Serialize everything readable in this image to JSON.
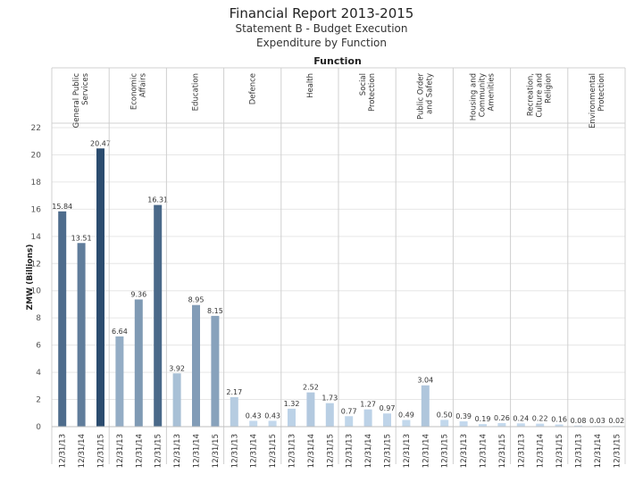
{
  "header": {
    "title": "Financial Report 2013-2015",
    "subtitle1": "Statement B - Budget Execution",
    "subtitle2": "Expenditure by Function"
  },
  "chart_data": {
    "type": "bar",
    "title": "Financial Report 2013-2015",
    "subtitle": [
      "Statement B - Budget Execution",
      "Expenditure by Function"
    ],
    "column_header": "Function",
    "ylabel": "ZMW (Billions)",
    "xlabel": "",
    "ylim": [
      0,
      22
    ],
    "yticks": [
      0,
      2,
      4,
      6,
      8,
      10,
      12,
      14,
      16,
      18,
      20,
      22
    ],
    "grid": true,
    "dates": [
      "12/31/13",
      "12/31/14",
      "12/31/15"
    ],
    "groups": [
      {
        "name": "General Public Services",
        "label_lines": [
          "General Public",
          "Services"
        ],
        "values": [
          15.84,
          13.51,
          20.47
        ]
      },
      {
        "name": "Economic Affairs",
        "label_lines": [
          "Economic",
          "Affairs"
        ],
        "values": [
          6.64,
          9.36,
          16.31
        ]
      },
      {
        "name": "Education",
        "label_lines": [
          "Education"
        ],
        "values": [
          3.92,
          8.95,
          8.15
        ]
      },
      {
        "name": "Defence",
        "label_lines": [
          "Defence"
        ],
        "values": [
          2.17,
          0.43,
          0.43
        ]
      },
      {
        "name": "Health",
        "label_lines": [
          "Health"
        ],
        "values": [
          1.32,
          2.52,
          1.73
        ]
      },
      {
        "name": "Social Protection",
        "label_lines": [
          "Social",
          "Protection"
        ],
        "values": [
          0.77,
          1.27,
          0.97
        ]
      },
      {
        "name": "Public Order and Safety",
        "label_lines": [
          "Public Order",
          "and Safety"
        ],
        "values": [
          0.49,
          3.04,
          0.5
        ]
      },
      {
        "name": "Housing and Community Amenities",
        "label_lines": [
          "Housing and",
          "Community",
          "Amenities"
        ],
        "values": [
          0.39,
          0.19,
          0.26
        ]
      },
      {
        "name": "Recreation, Culture and Religion",
        "label_lines": [
          "Recreation,",
          "Culture and",
          "Religion"
        ],
        "values": [
          0.24,
          0.22,
          0.16
        ]
      },
      {
        "name": "Environmental Protection",
        "label_lines": [
          "Environmental",
          "Protection"
        ],
        "values": [
          0.08,
          0.03,
          0.02
        ]
      }
    ],
    "value_labels": [
      [
        "15.84",
        "13.51",
        "20.47"
      ],
      [
        "6.64",
        "9.36",
        "16.31"
      ],
      [
        "3.92",
        "8.95",
        "8.15"
      ],
      [
        "2.17",
        "0.43",
        "0.43"
      ],
      [
        "1.32",
        "2.52",
        "1.73"
      ],
      [
        "0.77",
        "1.27",
        "0.97"
      ],
      [
        "0.49",
        "3.04",
        "0.50"
      ],
      [
        "0.39",
        "0.19",
        "0.26"
      ],
      [
        "0.24",
        "0.22",
        "0.16"
      ],
      [
        "0.08",
        "0.03",
        "0.02"
      ]
    ],
    "color_scale": [
      "#c6dbef",
      "#2b4c6f"
    ],
    "color_domain": [
      0,
      20.47
    ]
  }
}
